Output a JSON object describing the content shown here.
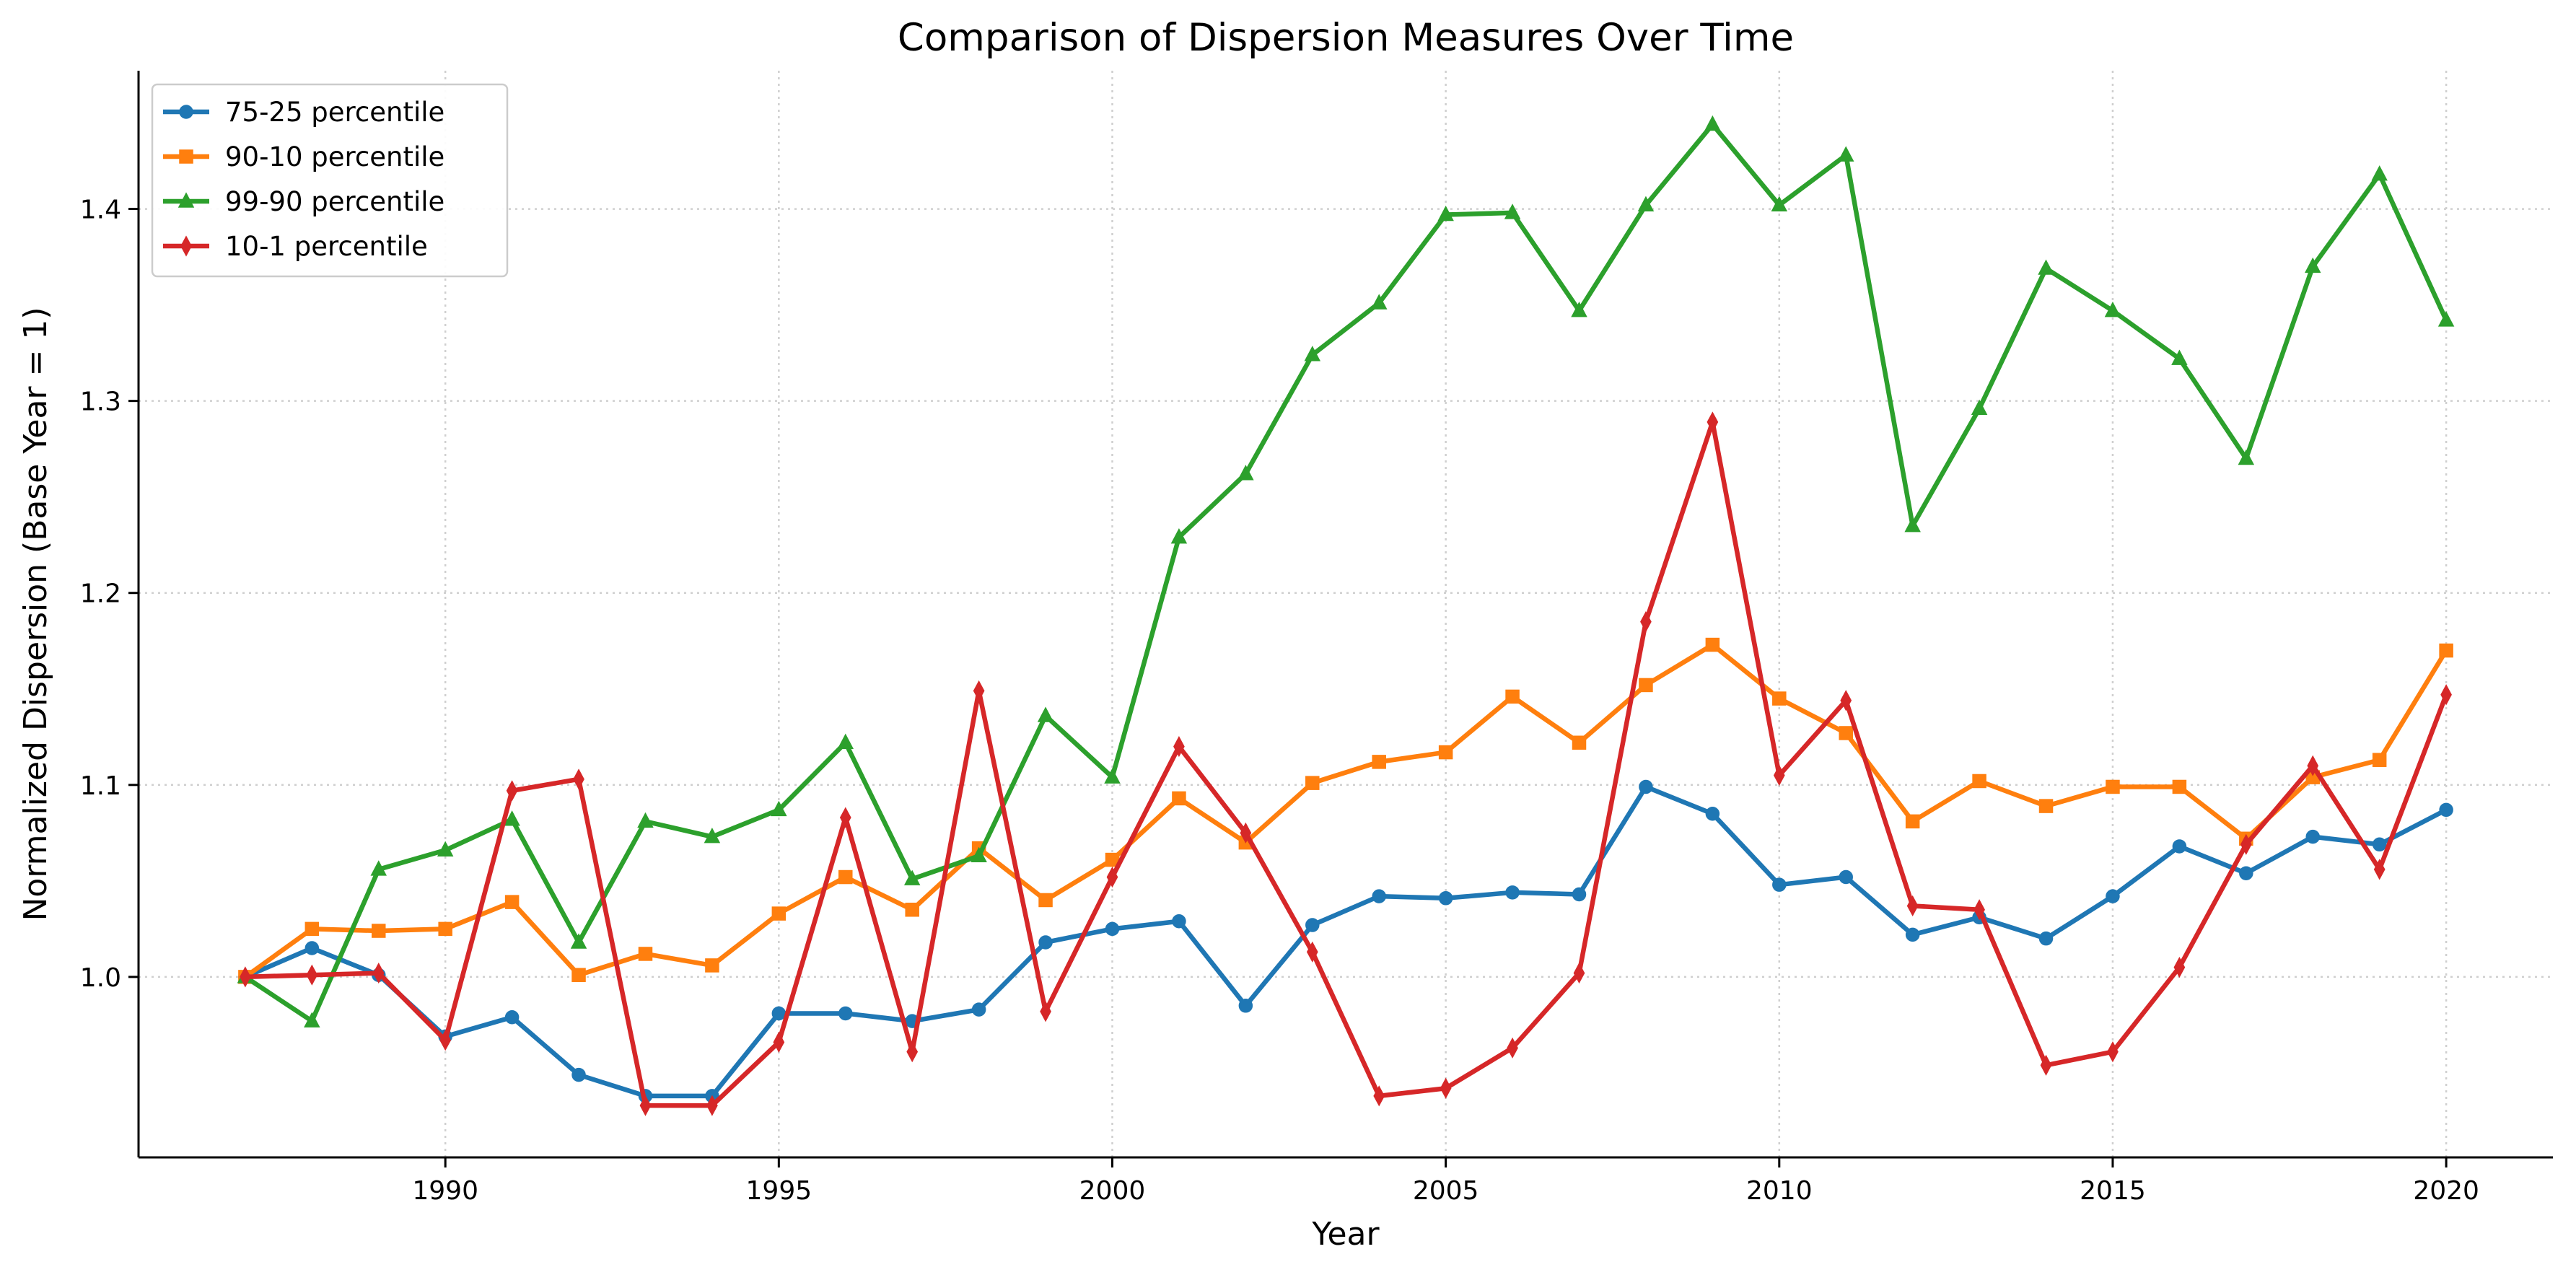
{
  "chart_data": {
    "type": "line",
    "title": "Comparison of Dispersion Measures Over Time",
    "xlabel": "Year",
    "ylabel": "Normalized Dispersion (Base Year = 1)",
    "xlim": [
      1985.4,
      2021.6
    ],
    "ylim": [
      0.906,
      1.472
    ],
    "xticks": [
      1990,
      1995,
      2000,
      2005,
      2010,
      2015,
      2020
    ],
    "yticks": [
      1.0,
      1.1,
      1.2,
      1.3,
      1.4
    ],
    "ytick_labels": [
      "1.0",
      "1.1",
      "1.2",
      "1.3",
      "1.4"
    ],
    "grid": true,
    "legend_position": "top-left",
    "x": [
      1987,
      1988,
      1989,
      1990,
      1991,
      1992,
      1993,
      1994,
      1995,
      1996,
      1997,
      1998,
      1999,
      2000,
      2001,
      2002,
      2003,
      2004,
      2005,
      2006,
      2007,
      2008,
      2009,
      2010,
      2011,
      2012,
      2013,
      2014,
      2015,
      2016,
      2017,
      2018,
      2019,
      2020
    ],
    "series": [
      {
        "name": "75-25 percentile",
        "color": "#1f77b4",
        "marker": "circle",
        "values": [
          1.0,
          1.015,
          1.001,
          0.969,
          0.979,
          0.949,
          0.938,
          0.938,
          0.981,
          0.981,
          0.977,
          0.983,
          1.018,
          1.025,
          1.029,
          0.985,
          1.027,
          1.042,
          1.041,
          1.044,
          1.043,
          1.099,
          1.085,
          1.048,
          1.052,
          1.022,
          1.031,
          1.02,
          1.042,
          1.068,
          1.054,
          1.073,
          1.069,
          1.087
        ]
      },
      {
        "name": "90-10 percentile",
        "color": "#ff7f0e",
        "marker": "square",
        "values": [
          1.0,
          1.025,
          1.024,
          1.025,
          1.039,
          1.001,
          1.012,
          1.006,
          1.033,
          1.052,
          1.035,
          1.067,
          1.04,
          1.061,
          1.093,
          1.07,
          1.101,
          1.112,
          1.117,
          1.146,
          1.122,
          1.152,
          1.173,
          1.145,
          1.127,
          1.081,
          1.102,
          1.089,
          1.099,
          1.099,
          1.072,
          1.104,
          1.113,
          1.17
        ]
      },
      {
        "name": "99-90 percentile",
        "color": "#2ca02c",
        "marker": "triangle",
        "values": [
          1.0,
          0.977,
          1.056,
          1.066,
          1.082,
          1.018,
          1.081,
          1.073,
          1.087,
          1.122,
          1.051,
          1.063,
          1.136,
          1.104,
          1.229,
          1.262,
          1.324,
          1.351,
          1.397,
          1.398,
          1.347,
          1.402,
          1.444,
          1.402,
          1.428,
          1.235,
          1.296,
          1.369,
          1.347,
          1.322,
          1.27,
          1.37,
          1.418,
          1.342
        ]
      },
      {
        "name": "10-1 percentile",
        "color": "#d62728",
        "marker": "diamond",
        "values": [
          1.0,
          1.001,
          1.002,
          0.967,
          1.097,
          1.103,
          0.933,
          0.933,
          0.966,
          1.083,
          0.961,
          1.149,
          0.982,
          1.052,
          1.12,
          1.075,
          1.013,
          0.938,
          0.942,
          0.963,
          1.002,
          1.185,
          1.289,
          1.105,
          1.144,
          1.037,
          1.035,
          0.954,
          0.961,
          1.005,
          1.069,
          1.11,
          1.056,
          1.147
        ]
      }
    ]
  }
}
